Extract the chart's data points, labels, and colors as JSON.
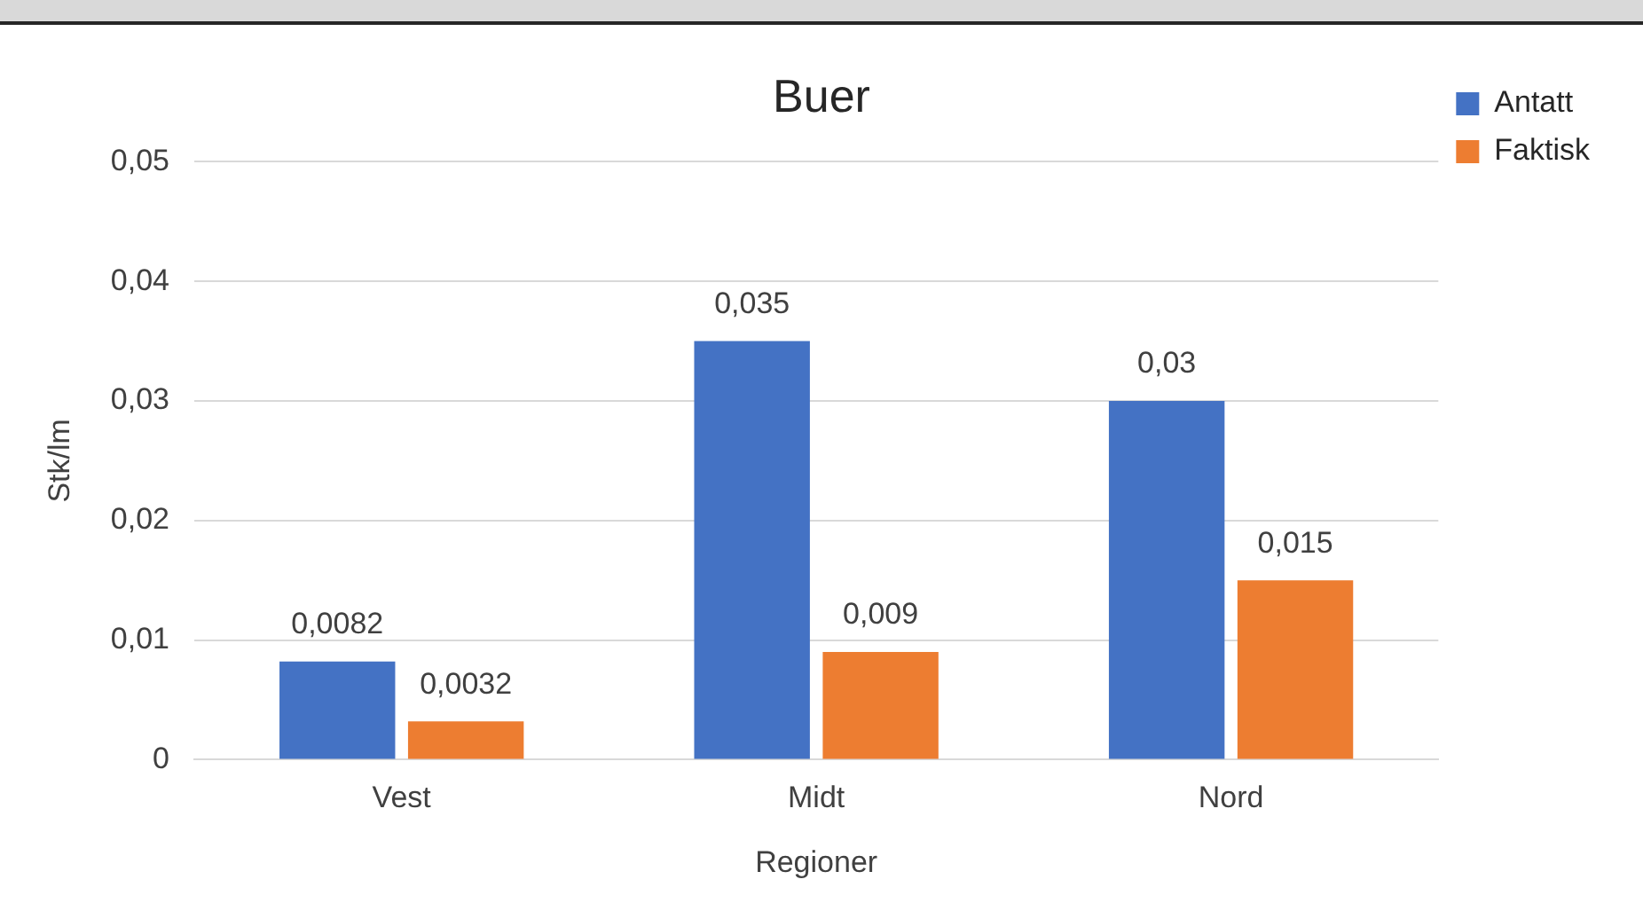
{
  "chart_data": {
    "type": "bar",
    "title": "Buer",
    "xlabel": "Regioner",
    "ylabel": "Stk/lm",
    "categories": [
      "Vest",
      "Midt",
      "Nord"
    ],
    "series": [
      {
        "name": "Antatt",
        "color": "#4472c4",
        "values": [
          0.0082,
          0.035,
          0.03
        ],
        "value_labels": [
          "0,0082",
          "0,035",
          "0,03"
        ]
      },
      {
        "name": "Faktisk",
        "color": "#ed7d31",
        "values": [
          0.0032,
          0.009,
          0.015
        ],
        "value_labels": [
          "0,0032",
          "0,009",
          "0,015"
        ]
      }
    ],
    "ylim": [
      0,
      0.05
    ],
    "yticks": [
      0,
      {
        "value": 0.01,
        "label": "0,01"
      },
      {
        "value": 0.02,
        "label": "0,02"
      },
      {
        "value": 0.03,
        "label": "0,03"
      },
      {
        "value": 0.04,
        "label": "0,04"
      },
      {
        "value": 0.05,
        "label": "0,05"
      }
    ],
    "grid": "y",
    "legend": "top right"
  }
}
